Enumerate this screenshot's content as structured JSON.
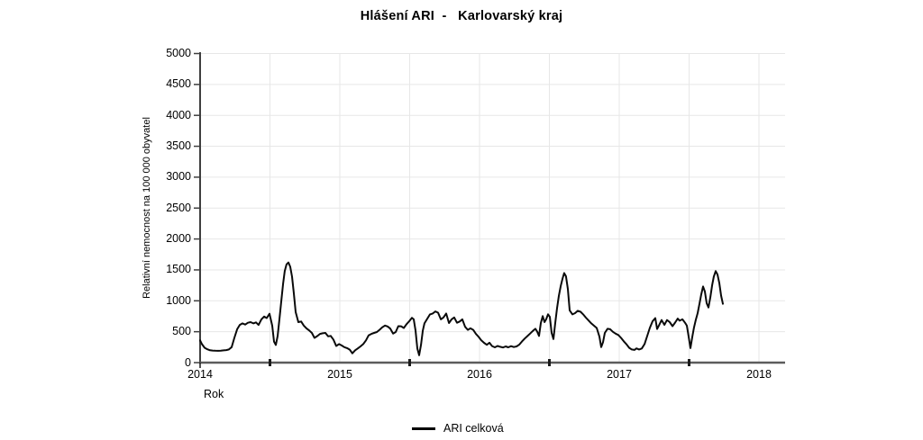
{
  "title": "Hlášení ARI  -   Karlovarský kraj",
  "colors": {
    "line": "#0a0a0a",
    "grid": "#e7e7e7",
    "axis_left": "#3f3f3f",
    "axis_bottom": "#5c5c5c",
    "tick": "#1a1a1a",
    "text": "#000000"
  },
  "chart_data": {
    "type": "line",
    "title": "Hlášení ARI - Karlovarský kraj",
    "xlabel": "Rok",
    "ylabel": "Relativní nemocnost na 100 000 obyvatel",
    "xlim": [
      2014,
      2018.185
    ],
    "ylim": [
      0,
      5000
    ],
    "x_ticks": [
      2014,
      2015,
      2016,
      2017,
      2018
    ],
    "x_minor_ticks": [
      2014.5,
      2015.5,
      2016.5,
      2017.5
    ],
    "y_ticks": [
      0,
      500,
      1000,
      1500,
      2000,
      2500,
      3000,
      3500,
      4000,
      4500,
      5000
    ],
    "grid": true,
    "legend": {
      "position": "bottom-center",
      "entries": [
        {
          "label": "ARI celková",
          "color": "#000000"
        }
      ]
    },
    "series": [
      {
        "name": "ARI celková",
        "color": "#0a0a0a",
        "points": [
          [
            2014.0,
            360
          ],
          [
            2014.013,
            300
          ],
          [
            2014.032,
            240
          ],
          [
            2014.052,
            215
          ],
          [
            2014.071,
            200
          ],
          [
            2014.09,
            195
          ],
          [
            2014.11,
            192
          ],
          [
            2014.129,
            190
          ],
          [
            2014.148,
            193
          ],
          [
            2014.168,
            198
          ],
          [
            2014.187,
            203
          ],
          [
            2014.206,
            212
          ],
          [
            2014.226,
            250
          ],
          [
            2014.245,
            400
          ],
          [
            2014.265,
            540
          ],
          [
            2014.284,
            610
          ],
          [
            2014.303,
            635
          ],
          [
            2014.323,
            615
          ],
          [
            2014.342,
            645
          ],
          [
            2014.361,
            655
          ],
          [
            2014.381,
            635
          ],
          [
            2014.4,
            650
          ],
          [
            2014.419,
            610
          ],
          [
            2014.439,
            700
          ],
          [
            2014.458,
            745
          ],
          [
            2014.477,
            720
          ],
          [
            2014.497,
            790
          ],
          [
            2014.516,
            600
          ],
          [
            2014.529,
            340
          ],
          [
            2014.542,
            285
          ],
          [
            2014.555,
            430
          ],
          [
            2014.568,
            700
          ],
          [
            2014.581,
            1000
          ],
          [
            2014.594,
            1280
          ],
          [
            2014.606,
            1480
          ],
          [
            2014.619,
            1590
          ],
          [
            2014.632,
            1620
          ],
          [
            2014.645,
            1550
          ],
          [
            2014.658,
            1390
          ],
          [
            2014.671,
            1120
          ],
          [
            2014.684,
            820
          ],
          [
            2014.703,
            655
          ],
          [
            2014.723,
            665
          ],
          [
            2014.742,
            600
          ],
          [
            2014.761,
            555
          ],
          [
            2014.781,
            520
          ],
          [
            2014.8,
            480
          ],
          [
            2014.819,
            400
          ],
          [
            2014.839,
            430
          ],
          [
            2014.858,
            465
          ],
          [
            2014.877,
            475
          ],
          [
            2014.897,
            480
          ],
          [
            2014.916,
            425
          ],
          [
            2014.935,
            432
          ],
          [
            2014.955,
            370
          ],
          [
            2014.974,
            270
          ],
          [
            2014.994,
            300
          ],
          [
            2015.013,
            278
          ],
          [
            2015.032,
            250
          ],
          [
            2015.052,
            235
          ],
          [
            2015.071,
            210
          ],
          [
            2015.09,
            150
          ],
          [
            2015.11,
            200
          ],
          [
            2015.129,
            230
          ],
          [
            2015.148,
            262
          ],
          [
            2015.168,
            300
          ],
          [
            2015.187,
            360
          ],
          [
            2015.206,
            440
          ],
          [
            2015.226,
            465
          ],
          [
            2015.245,
            480
          ],
          [
            2015.265,
            495
          ],
          [
            2015.284,
            530
          ],
          [
            2015.303,
            570
          ],
          [
            2015.323,
            600
          ],
          [
            2015.342,
            585
          ],
          [
            2015.361,
            550
          ],
          [
            2015.381,
            470
          ],
          [
            2015.4,
            495
          ],
          [
            2015.419,
            590
          ],
          [
            2015.439,
            588
          ],
          [
            2015.458,
            560
          ],
          [
            2015.477,
            620
          ],
          [
            2015.497,
            670
          ],
          [
            2015.516,
            725
          ],
          [
            2015.529,
            700
          ],
          [
            2015.542,
            520
          ],
          [
            2015.555,
            230
          ],
          [
            2015.568,
            120
          ],
          [
            2015.581,
            290
          ],
          [
            2015.594,
            520
          ],
          [
            2015.606,
            635
          ],
          [
            2015.626,
            710
          ],
          [
            2015.645,
            780
          ],
          [
            2015.665,
            795
          ],
          [
            2015.684,
            828
          ],
          [
            2015.703,
            808
          ],
          [
            2015.723,
            700
          ],
          [
            2015.742,
            730
          ],
          [
            2015.761,
            795
          ],
          [
            2015.781,
            640
          ],
          [
            2015.8,
            700
          ],
          [
            2015.819,
            730
          ],
          [
            2015.839,
            645
          ],
          [
            2015.858,
            665
          ],
          [
            2015.877,
            700
          ],
          [
            2015.897,
            580
          ],
          [
            2015.916,
            530
          ],
          [
            2015.935,
            555
          ],
          [
            2015.955,
            530
          ],
          [
            2015.974,
            465
          ],
          [
            2015.994,
            415
          ],
          [
            2016.013,
            360
          ],
          [
            2016.032,
            320
          ],
          [
            2016.052,
            288
          ],
          [
            2016.071,
            322
          ],
          [
            2016.09,
            268
          ],
          [
            2016.11,
            248
          ],
          [
            2016.129,
            270
          ],
          [
            2016.148,
            256
          ],
          [
            2016.168,
            245
          ],
          [
            2016.187,
            262
          ],
          [
            2016.206,
            248
          ],
          [
            2016.226,
            266
          ],
          [
            2016.245,
            252
          ],
          [
            2016.265,
            262
          ],
          [
            2016.284,
            290
          ],
          [
            2016.303,
            340
          ],
          [
            2016.323,
            388
          ],
          [
            2016.342,
            428
          ],
          [
            2016.361,
            468
          ],
          [
            2016.381,
            512
          ],
          [
            2016.4,
            548
          ],
          [
            2016.413,
            500
          ],
          [
            2016.426,
            432
          ],
          [
            2016.439,
            640
          ],
          [
            2016.452,
            752
          ],
          [
            2016.465,
            655
          ],
          [
            2016.477,
            700
          ],
          [
            2016.49,
            782
          ],
          [
            2016.503,
            740
          ],
          [
            2016.516,
            480
          ],
          [
            2016.529,
            382
          ],
          [
            2016.542,
            640
          ],
          [
            2016.555,
            880
          ],
          [
            2016.568,
            1080
          ],
          [
            2016.581,
            1240
          ],
          [
            2016.594,
            1360
          ],
          [
            2016.606,
            1448
          ],
          [
            2016.619,
            1398
          ],
          [
            2016.632,
            1190
          ],
          [
            2016.645,
            845
          ],
          [
            2016.665,
            780
          ],
          [
            2016.684,
            800
          ],
          [
            2016.703,
            838
          ],
          [
            2016.723,
            822
          ],
          [
            2016.742,
            780
          ],
          [
            2016.761,
            728
          ],
          [
            2016.781,
            680
          ],
          [
            2016.8,
            635
          ],
          [
            2016.819,
            598
          ],
          [
            2016.839,
            560
          ],
          [
            2016.858,
            420
          ],
          [
            2016.871,
            250
          ],
          [
            2016.884,
            330
          ],
          [
            2016.897,
            480
          ],
          [
            2016.916,
            548
          ],
          [
            2016.935,
            540
          ],
          [
            2016.955,
            498
          ],
          [
            2016.974,
            468
          ],
          [
            2016.994,
            445
          ],
          [
            2017.013,
            400
          ],
          [
            2017.032,
            345
          ],
          [
            2017.052,
            295
          ],
          [
            2017.071,
            240
          ],
          [
            2017.09,
            212
          ],
          [
            2017.11,
            205
          ],
          [
            2017.123,
            230
          ],
          [
            2017.142,
            212
          ],
          [
            2017.161,
            228
          ],
          [
            2017.181,
            300
          ],
          [
            2017.2,
            430
          ],
          [
            2017.219,
            560
          ],
          [
            2017.239,
            670
          ],
          [
            2017.258,
            720
          ],
          [
            2017.271,
            545
          ],
          [
            2017.284,
            600
          ],
          [
            2017.303,
            688
          ],
          [
            2017.323,
            612
          ],
          [
            2017.342,
            688
          ],
          [
            2017.361,
            655
          ],
          [
            2017.381,
            590
          ],
          [
            2017.4,
            648
          ],
          [
            2017.419,
            712
          ],
          [
            2017.432,
            678
          ],
          [
            2017.452,
            700
          ],
          [
            2017.471,
            645
          ],
          [
            2017.484,
            598
          ],
          [
            2017.497,
            420
          ],
          [
            2017.51,
            235
          ],
          [
            2017.523,
            420
          ],
          [
            2017.535,
            565
          ],
          [
            2017.548,
            690
          ],
          [
            2017.561,
            800
          ],
          [
            2017.574,
            950
          ],
          [
            2017.587,
            1105
          ],
          [
            2017.6,
            1232
          ],
          [
            2017.613,
            1150
          ],
          [
            2017.626,
            960
          ],
          [
            2017.639,
            892
          ],
          [
            2017.652,
            1060
          ],
          [
            2017.665,
            1255
          ],
          [
            2017.677,
            1390
          ],
          [
            2017.69,
            1480
          ],
          [
            2017.703,
            1425
          ],
          [
            2017.716,
            1290
          ],
          [
            2017.729,
            1085
          ],
          [
            2017.742,
            950
          ]
        ]
      }
    ]
  }
}
